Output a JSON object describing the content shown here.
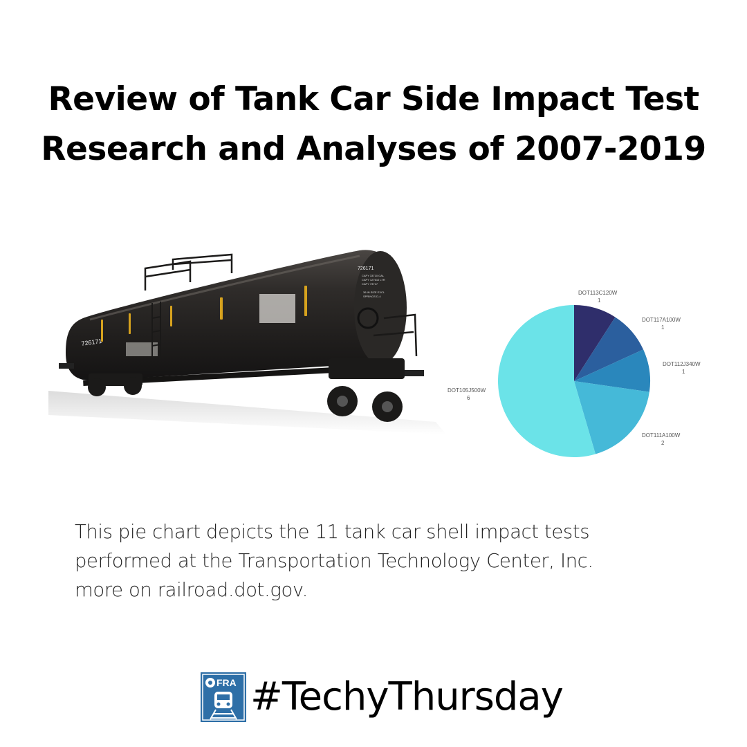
{
  "title": {
    "line1": "Review of Tank Car Side Impact Test",
    "line2": "Research and Analyses of 2007-2019"
  },
  "tank_car": {
    "main_id": "726171",
    "side_id": "726171",
    "stencil_lines": [
      "CAPY 33710 GAL",
      "CAPY 127610 LTR",
      "CAPY 73717",
      "36 IN SIZE EXCL",
      "SPRINGS D-4"
    ]
  },
  "caption": {
    "line1": "This pie chart depicts the 11 tank car shell impact tests",
    "line2": "performed at the Transportation Technology Center, Inc.",
    "line3": "more on railroad.dot.gov."
  },
  "footer": {
    "logo_text": "FRA",
    "hashtag": "#TechyThursday"
  },
  "colors": {
    "logo_blue": "#2e6fa7",
    "tank_body": "#2b2826",
    "stripe": "#d6a21e"
  },
  "chart_data": {
    "type": "pie",
    "title": "",
    "total": 11,
    "start_angle_deg": 0,
    "direction": "clockwise",
    "labels": [
      "DOT113C120W",
      "DOT117A100W",
      "DOT112J340W",
      "DOT111A100W",
      "DOT105J500W"
    ],
    "values": [
      1,
      1,
      1,
      2,
      6
    ],
    "colors": [
      "#2f2e6b",
      "#2b5f9e",
      "#2a87bc",
      "#45b9d8",
      "#6be3e8"
    ],
    "label_position": "outside"
  }
}
